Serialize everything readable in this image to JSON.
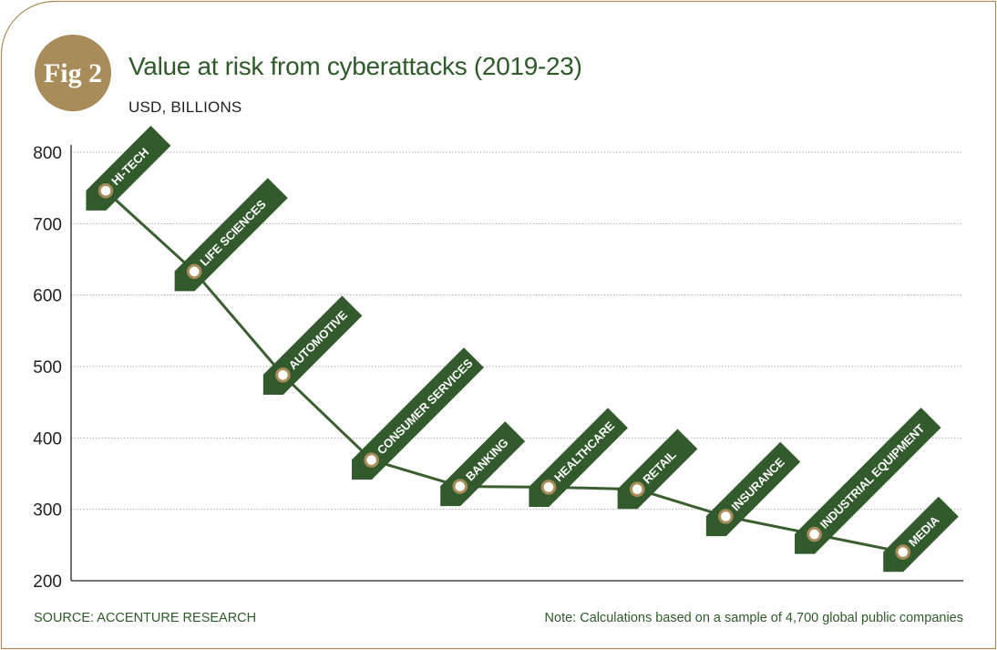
{
  "badge": {
    "label": "Fig 2"
  },
  "header": {
    "title": "Value at risk from cyberattacks (2019-23)",
    "subtitle": "USD, BILLIONS"
  },
  "footer": {
    "source": "SOURCE: ACCENTURE RESEARCH",
    "note": "Note: Calculations based on a sample of 4,700 global public companies"
  },
  "colors": {
    "line": "#3a5e30",
    "tag": "#325a2c",
    "marker_ring": "#a88d5a",
    "badge": "#a88d5a",
    "frame": "#a88d5a",
    "grid": "#9a9a9a"
  },
  "chart_data": {
    "type": "line",
    "title": "Value at risk from cyberattacks (2019-23)",
    "subtitle": "USD, BILLIONS",
    "xlabel": "",
    "ylabel": "",
    "ylim": [
      200,
      800
    ],
    "yticks": [
      200,
      300,
      400,
      500,
      600,
      700,
      800
    ],
    "grid": true,
    "categories": [
      "HI-TECH",
      "LIFE SCIENCES",
      "AUTOMOTIVE",
      "CONSUMER SERVICES",
      "BANKING",
      "HEALTHCARE",
      "RETAIL",
      "INSURANCE",
      "INDUSTRIAL EQUIPMENT",
      "MEDIA"
    ],
    "values": [
      746,
      633,
      488,
      369,
      332,
      331,
      328,
      290,
      265,
      240
    ]
  }
}
